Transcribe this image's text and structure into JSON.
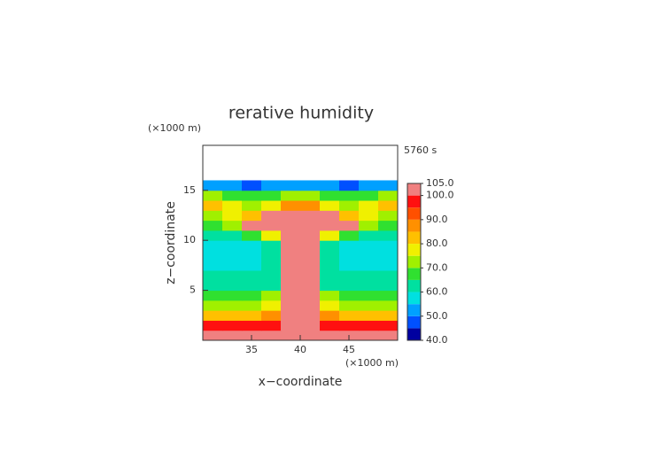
{
  "chart_data": {
    "type": "contour",
    "title": "rerative humidity",
    "y_unit": "(×1000 m)",
    "x_unit": "(×1000 m)",
    "time_label": "5760 s",
    "xlabel": "x−coordinate",
    "ylabel": "z−coordinate",
    "xlim": [
      30,
      50
    ],
    "ylim": [
      0,
      19.5
    ],
    "xticks": [
      35,
      40,
      45
    ],
    "yticks": [
      5,
      10,
      15
    ],
    "x": [
      31,
      33,
      35,
      37,
      39,
      41,
      43,
      45,
      47,
      49
    ],
    "z": [
      0.5,
      1.5,
      2.5,
      3.5,
      4.5,
      5.5,
      6.5,
      7.5,
      8.5,
      9.5,
      10.5,
      11.5,
      12.5,
      13.5,
      14.5,
      15.5
    ],
    "values": [
      [
        100,
        101,
        101,
        101,
        102,
        102,
        101,
        101,
        101,
        100
      ],
      [
        96,
        96,
        97,
        98,
        103,
        103,
        98,
        97,
        96,
        96
      ],
      [
        84,
        83,
        82,
        86,
        103,
        103,
        86,
        82,
        83,
        84
      ],
      [
        74,
        73,
        72,
        78,
        103,
        103,
        78,
        72,
        73,
        74
      ],
      [
        67,
        66,
        66,
        70,
        102,
        102,
        70,
        66,
        66,
        67
      ],
      [
        62,
        63,
        61,
        64,
        102,
        102,
        64,
        61,
        63,
        62
      ],
      [
        61,
        60,
        60,
        62,
        101,
        101,
        62,
        60,
        60,
        61
      ],
      [
        57,
        56,
        57,
        60,
        101,
        101,
        60,
        57,
        56,
        57
      ],
      [
        56,
        55,
        56,
        60,
        101,
        101,
        60,
        56,
        55,
        56
      ],
      [
        57,
        56,
        57,
        62,
        101,
        101,
        62,
        57,
        56,
        57
      ],
      [
        62,
        62,
        66,
        78,
        102,
        102,
        78,
        66,
        62,
        62
      ],
      [
        68,
        70,
        102,
        103,
        103,
        103,
        103,
        102,
        70,
        68
      ],
      [
        73,
        76,
        82,
        103,
        103,
        103,
        103,
        82,
        76,
        73
      ],
      [
        82,
        78,
        73,
        77,
        88,
        88,
        77,
        73,
        78,
        82
      ],
      [
        70,
        68,
        66,
        68,
        70,
        70,
        68,
        66,
        68,
        70
      ],
      [
        52,
        51,
        48,
        50,
        52,
        52,
        50,
        48,
        51,
        52
      ]
    ],
    "levels": [
      40,
      45,
      50,
      55,
      60,
      65,
      70,
      75,
      80,
      85,
      90,
      95,
      100,
      105
    ],
    "colors": [
      "#0000a0",
      "#0050ff",
      "#00a0ff",
      "#00e0e0",
      "#00e0a0",
      "#30e030",
      "#a0f000",
      "#f0f000",
      "#ffc000",
      "#ff9000",
      "#ff5000",
      "#ff1010",
      "#f08080"
    ],
    "colorbar_ticks": [
      {
        "value": 40,
        "label": "40.0"
      },
      {
        "value": 50,
        "label": "50.0"
      },
      {
        "value": 60,
        "label": "60.0"
      },
      {
        "value": 70,
        "label": "70.0"
      },
      {
        "value": 80,
        "label": "80.0"
      },
      {
        "value": 90,
        "label": "90.0"
      },
      {
        "value": 100,
        "label": "100.0"
      },
      {
        "value": 105,
        "label": "105.0"
      }
    ]
  }
}
